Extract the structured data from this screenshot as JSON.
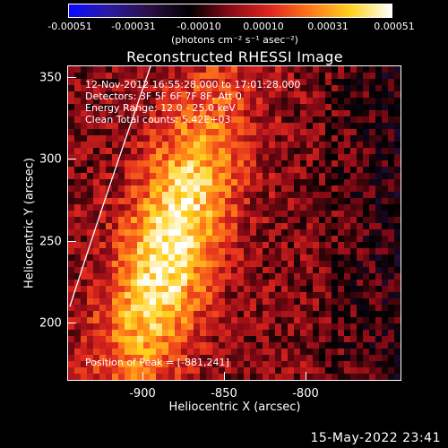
{
  "colorbar": {
    "ticks": [
      "-0.00051",
      "-0.00031",
      "-0.00010",
      "0.00010",
      "0.00031",
      "0.00051"
    ],
    "units": "(photons cm⁻² s⁻¹ asec⁻²)",
    "colors": [
      "#0a0aff",
      "#2a1aa0",
      "#2b0f45",
      "#000000",
      "#8a0a16",
      "#e0271e",
      "#ff7a1a",
      "#ffd21e",
      "#ffffff"
    ]
  },
  "title": "Reconstructed RHESSI Image",
  "info": {
    "time_range": "12-Nov-2012 16:55:28.000 to 17:01:28.000",
    "detectors": "Detectors: 3F 5F 6F 7F 8F, Att 0",
    "energy": "Energy Range: 12.0 - 25.0 keV",
    "clean": "Clean     Total counts: 5.42E+03",
    "peak": "Position of Peak = [-881,241]"
  },
  "axes": {
    "xlabel": "Heliocentric X (arcsec)",
    "ylabel": "Heliocentric Y (arcsec)",
    "xticks": [
      "-900",
      "-850",
      "-800"
    ],
    "yticks": [
      "350",
      "300",
      "250",
      "200"
    ],
    "xlim": [
      -948,
      -846
    ],
    "ylim": [
      165,
      358
    ]
  },
  "timestamp": "15-May-2022 23:41"
}
